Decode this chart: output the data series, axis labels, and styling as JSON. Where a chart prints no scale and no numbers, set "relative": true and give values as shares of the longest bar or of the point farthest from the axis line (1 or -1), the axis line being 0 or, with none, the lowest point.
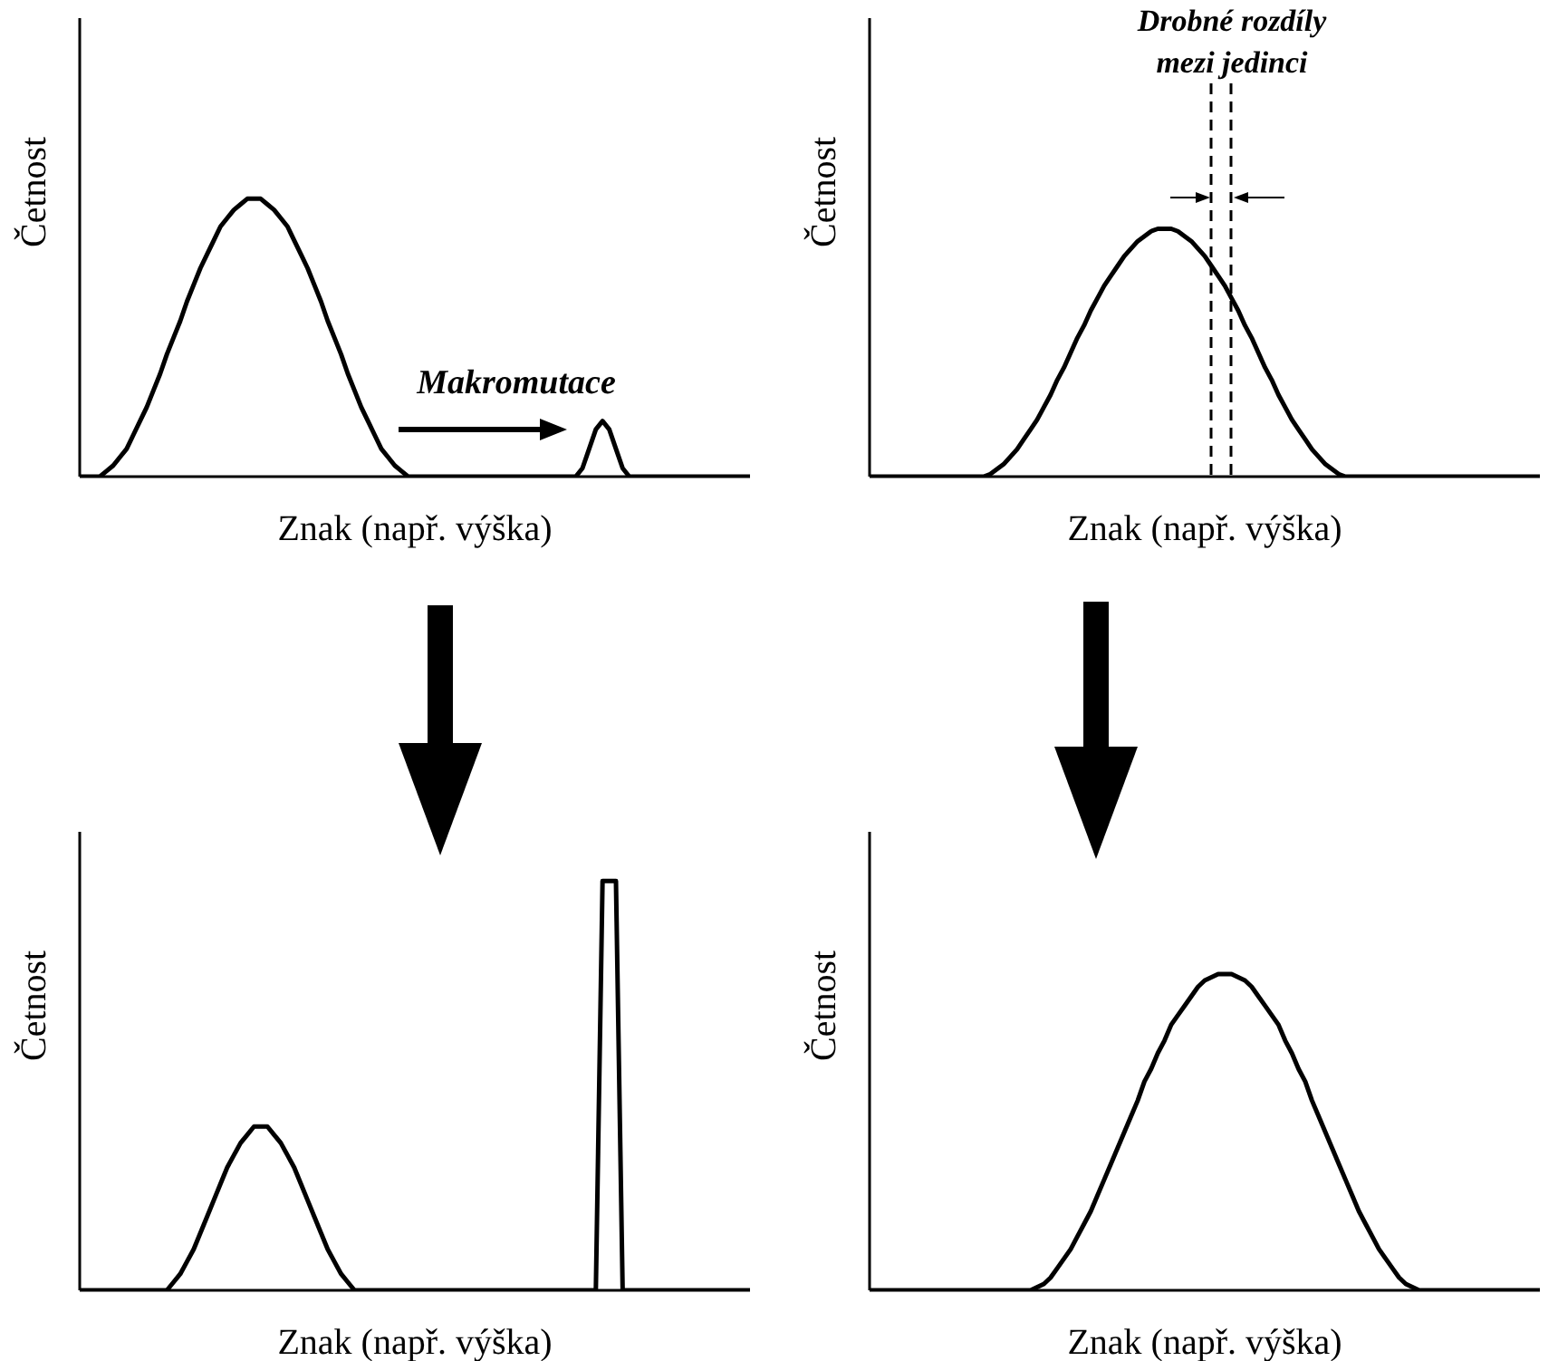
{
  "chart_data": [
    {
      "type": "line",
      "relative": true,
      "xlabel": "Znak (např. výška)",
      "ylabel": "Četnost",
      "marker": "none",
      "annotations": [
        "Makromutace"
      ],
      "categories": [
        null,
        null,
        null,
        null,
        null,
        null,
        null,
        null,
        null,
        null,
        null,
        null,
        null,
        null,
        null,
        null,
        null,
        null,
        null,
        null,
        null,
        null,
        null,
        null,
        null,
        null,
        null,
        null,
        null,
        null,
        null,
        null,
        null,
        null,
        null,
        null,
        null,
        null,
        null,
        null,
        null,
        null,
        null,
        null,
        null,
        null,
        null,
        null,
        null,
        null,
        null,
        null,
        null,
        null,
        null,
        null,
        null,
        null,
        null,
        null,
        null,
        null,
        null,
        null,
        null,
        null,
        null,
        null,
        null,
        null,
        null,
        null,
        null,
        null,
        null,
        null,
        null,
        null,
        null,
        null,
        null,
        null,
        null,
        null,
        null,
        null,
        null,
        null,
        null,
        null,
        null,
        null,
        null,
        null,
        null,
        null,
        null,
        null,
        null,
        null,
        null
      ],
      "series": [
        {
          "color": "#000000",
          "values": [
            0,
            0,
            0,
            0,
            0.02,
            0.04,
            0.07,
            0.1,
            0.15,
            0.2,
            0.25,
            0.31,
            0.37,
            0.44,
            0.5,
            0.56,
            0.63,
            0.69,
            0.75,
            0.8,
            0.85,
            0.9,
            0.93,
            0.96,
            0.98,
            1,
            1,
            1,
            0.98,
            0.96,
            0.93,
            0.9,
            0.85,
            0.8,
            0.75,
            0.69,
            0.63,
            0.56,
            0.5,
            0.44,
            0.37,
            0.31,
            0.25,
            0.2,
            0.15,
            0.1,
            0.07,
            0.04,
            0.02,
            0,
            0,
            0,
            0,
            0,
            0,
            0,
            0,
            0,
            0,
            0,
            0,
            0,
            0,
            0,
            0,
            0,
            0,
            0,
            0,
            0,
            0,
            0,
            0,
            0,
            0,
            0.03,
            0.1,
            0.17,
            0.2,
            0.17,
            0.1,
            0.03,
            0,
            0,
            0,
            0,
            0,
            0,
            0,
            0,
            0,
            0,
            0,
            0,
            0,
            0,
            0,
            0,
            0,
            0,
            0
          ]
        }
      ]
    },
    {
      "type": "line",
      "relative": true,
      "xlabel": "Znak (např. výška)",
      "ylabel": "Četnost",
      "marker": "none",
      "annotations": [
        "Drobné rozdíly mezi jedinci"
      ],
      "categories": [
        null,
        null,
        null,
        null,
        null,
        null,
        null,
        null,
        null,
        null,
        null,
        null,
        null,
        null,
        null,
        null,
        null,
        null,
        null,
        null,
        null,
        null,
        null,
        null,
        null,
        null,
        null,
        null,
        null,
        null,
        null,
        null,
        null,
        null,
        null,
        null,
        null,
        null,
        null,
        null,
        null,
        null,
        null,
        null,
        null,
        null,
        null,
        null,
        null,
        null,
        null,
        null,
        null,
        null,
        null,
        null,
        null,
        null,
        null,
        null,
        null,
        null,
        null,
        null,
        null,
        null,
        null,
        null,
        null,
        null,
        null,
        null,
        null,
        null,
        null,
        null,
        null,
        null,
        null,
        null,
        null,
        null,
        null,
        null,
        null,
        null,
        null,
        null,
        null,
        null,
        null,
        null,
        null,
        null,
        null,
        null,
        null,
        null,
        null,
        null,
        null
      ],
      "series": [
        {
          "color": "#000000",
          "values": [
            0,
            0,
            0,
            0,
            0,
            0,
            0,
            0,
            0,
            0,
            0,
            0,
            0,
            0,
            0,
            0,
            0,
            0,
            0.01,
            0.03,
            0.05,
            0.08,
            0.11,
            0.15,
            0.19,
            0.23,
            0.28,
            0.33,
            0.39,
            0.44,
            0.5,
            0.56,
            0.61,
            0.67,
            0.72,
            0.77,
            0.81,
            0.85,
            0.89,
            0.92,
            0.95,
            0.97,
            0.99,
            1,
            1,
            1,
            0.99,
            0.97,
            0.95,
            0.92,
            0.89,
            0.85,
            0.81,
            0.77,
            0.72,
            0.67,
            0.61,
            0.56,
            0.5,
            0.44,
            0.39,
            0.33,
            0.28,
            0.23,
            0.19,
            0.15,
            0.11,
            0.08,
            0.05,
            0.03,
            0.01,
            0,
            0,
            0,
            0,
            0,
            0,
            0,
            0,
            0,
            0,
            0,
            0,
            0,
            0,
            0,
            0,
            0,
            0,
            0,
            0,
            0,
            0,
            0,
            0,
            0,
            0,
            0,
            0,
            0,
            0
          ]
        }
      ]
    },
    {
      "type": "line",
      "relative": true,
      "xlabel": "Znak (např. výška)",
      "ylabel": "Četnost",
      "marker": "none",
      "categories": [
        null,
        null,
        null,
        null,
        null,
        null,
        null,
        null,
        null,
        null,
        null,
        null,
        null,
        null,
        null,
        null,
        null,
        null,
        null,
        null,
        null,
        null,
        null,
        null,
        null,
        null,
        null,
        null,
        null,
        null,
        null,
        null,
        null,
        null,
        null,
        null,
        null,
        null,
        null,
        null,
        null,
        null,
        null,
        null,
        null,
        null,
        null,
        null,
        null,
        null,
        null,
        null,
        null,
        null,
        null,
        null,
        null,
        null,
        null,
        null,
        null,
        null,
        null,
        null,
        null,
        null,
        null,
        null,
        null,
        null,
        null,
        null,
        null,
        null,
        null,
        null,
        null,
        null,
        null,
        null,
        null,
        null,
        null,
        null,
        null,
        null,
        null,
        null,
        null,
        null,
        null,
        null,
        null,
        null,
        null,
        null,
        null,
        null,
        null,
        null,
        null
      ],
      "series": [
        {
          "color": "#000000",
          "values": [
            0,
            0,
            0,
            0,
            0,
            0,
            0,
            0,
            0,
            0,
            0,
            0,
            0,
            0,
            0.02,
            0.04,
            0.07,
            0.1,
            0.14,
            0.18,
            0.22,
            0.26,
            0.3,
            0.33,
            0.36,
            0.38,
            0.4,
            0.4,
            0.4,
            0.38,
            0.36,
            0.33,
            0.3,
            0.26,
            0.22,
            0.18,
            0.14,
            0.1,
            0.07,
            0.04,
            0.02,
            0,
            0,
            0,
            0,
            0,
            0,
            0,
            0,
            0,
            0,
            0,
            0,
            0,
            0,
            0,
            0,
            0,
            0,
            0,
            0,
            0,
            0,
            0,
            0,
            0,
            0,
            0,
            0,
            0,
            0,
            0,
            0,
            0,
            0,
            0,
            0,
            0,
            1,
            1,
            1,
            0,
            0,
            0,
            0,
            0,
            0,
            0,
            0,
            0,
            0,
            0,
            0,
            0,
            0,
            0,
            0,
            0,
            0,
            0,
            0
          ]
        }
      ]
    },
    {
      "type": "line",
      "relative": true,
      "xlabel": "Znak (např. výška)",
      "ylabel": "Četnost",
      "marker": "none",
      "categories": [
        null,
        null,
        null,
        null,
        null,
        null,
        null,
        null,
        null,
        null,
        null,
        null,
        null,
        null,
        null,
        null,
        null,
        null,
        null,
        null,
        null,
        null,
        null,
        null,
        null,
        null,
        null,
        null,
        null,
        null,
        null,
        null,
        null,
        null,
        null,
        null,
        null,
        null,
        null,
        null,
        null,
        null,
        null,
        null,
        null,
        null,
        null,
        null,
        null,
        null,
        null,
        null,
        null,
        null,
        null,
        null,
        null,
        null,
        null,
        null,
        null,
        null,
        null,
        null,
        null,
        null,
        null,
        null,
        null,
        null,
        null,
        null,
        null,
        null,
        null,
        null,
        null,
        null,
        null,
        null,
        null,
        null,
        null,
        null,
        null,
        null,
        null,
        null,
        null,
        null,
        null,
        null,
        null,
        null,
        null,
        null,
        null,
        null,
        null,
        null,
        null
      ],
      "series": [
        {
          "color": "#000000",
          "values": [
            0,
            0,
            0,
            0,
            0,
            0,
            0,
            0,
            0,
            0,
            0,
            0,
            0,
            0,
            0,
            0,
            0,
            0,
            0,
            0,
            0,
            0,
            0,
            0,
            0,
            0.01,
            0.02,
            0.04,
            0.07,
            0.1,
            0.13,
            0.17,
            0.21,
            0.25,
            0.3,
            0.35,
            0.4,
            0.45,
            0.5,
            0.55,
            0.6,
            0.66,
            0.7,
            0.75,
            0.79,
            0.84,
            0.87,
            0.9,
            0.93,
            0.96,
            0.98,
            0.99,
            1,
            1,
            1,
            0.99,
            0.98,
            0.96,
            0.93,
            0.9,
            0.87,
            0.84,
            0.79,
            0.75,
            0.7,
            0.66,
            0.6,
            0.55,
            0.5,
            0.45,
            0.4,
            0.35,
            0.3,
            0.25,
            0.21,
            0.17,
            0.13,
            0.1,
            0.07,
            0.04,
            0.02,
            0.01,
            0,
            0,
            0,
            0,
            0,
            0,
            0,
            0,
            0,
            0,
            0,
            0,
            0,
            0,
            0,
            0,
            0,
            0,
            0
          ]
        }
      ]
    }
  ]
}
